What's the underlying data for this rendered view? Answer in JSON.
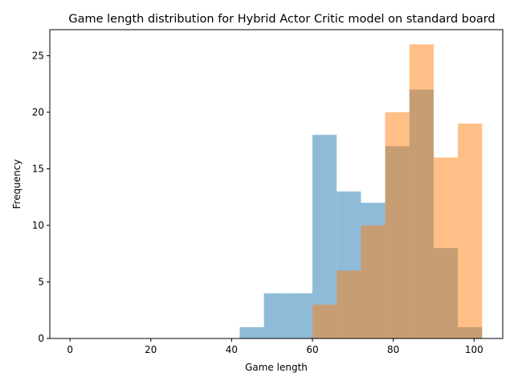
{
  "chart_data": {
    "type": "bar",
    "title": "Game length distribution for Hybrid Actor Critic model on standard board",
    "xlabel": "Game length",
    "ylabel": "Frequency",
    "xlim": [
      -5,
      107.1
    ],
    "ylim": [
      0,
      27.3
    ],
    "xticks": [
      0,
      20,
      40,
      60,
      80,
      100
    ],
    "yticks": [
      0,
      5,
      10,
      15,
      20,
      25
    ],
    "grid": false,
    "legend": "none",
    "bin_edges": [
      42,
      48,
      54,
      60,
      66,
      72,
      78,
      84,
      90,
      96,
      102
    ],
    "series": [
      {
        "color": "#1f77b4",
        "opacity": 0.5,
        "bins": [
          {
            "x0": 42,
            "x1": 48,
            "count": 1
          },
          {
            "x0": 48,
            "x1": 54,
            "count": 4
          },
          {
            "x0": 54,
            "x1": 60,
            "count": 4
          },
          {
            "x0": 60,
            "x1": 66,
            "count": 18
          },
          {
            "x0": 66,
            "x1": 72,
            "count": 13
          },
          {
            "x0": 72,
            "x1": 78,
            "count": 12
          },
          {
            "x0": 78,
            "x1": 84,
            "count": 17
          },
          {
            "x0": 84,
            "x1": 90,
            "count": 22
          },
          {
            "x0": 90,
            "x1": 96,
            "count": 8
          },
          {
            "x0": 96,
            "x1": 102,
            "count": 1
          }
        ]
      },
      {
        "color": "#ff7f0e",
        "opacity": 0.5,
        "bins": [
          {
            "x0": 60,
            "x1": 66,
            "count": 3
          },
          {
            "x0": 66,
            "x1": 72,
            "count": 6
          },
          {
            "x0": 72,
            "x1": 78,
            "count": 10
          },
          {
            "x0": 78,
            "x1": 84,
            "count": 20
          },
          {
            "x0": 84,
            "x1": 90,
            "count": 26
          },
          {
            "x0": 90,
            "x1": 96,
            "count": 16
          },
          {
            "x0": 96,
            "x1": 102,
            "count": 19
          }
        ]
      }
    ]
  }
}
